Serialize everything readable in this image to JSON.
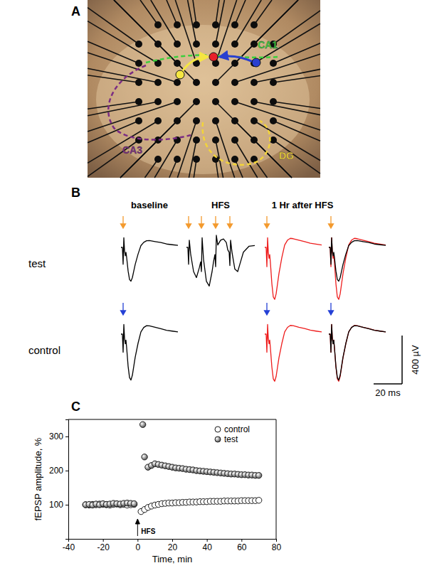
{
  "figure": {
    "panel_labels": [
      "A",
      "B",
      "C"
    ]
  },
  "panel_a": {
    "regions": [
      {
        "label": "CA1",
        "color": "#3ccf3c"
      },
      {
        "label": "CA3",
        "color": "#7b2d83"
      },
      {
        "label": "DG",
        "color": "#f2d43a"
      }
    ]
  },
  "panel_b": {
    "column_labels": [
      "baseline",
      "HFS",
      "1 Hr after HFS"
    ],
    "scale_bar": {
      "v": 400,
      "v_label": "400 µV",
      "t": 20,
      "t_label": "20 ms"
    },
    "rows": [
      {
        "label": "test",
        "arrow_color": "#f39a2e",
        "cells": [
          {
            "stimuli": [
              1.5
            ],
            "traces": [
              {
                "color": "#000000",
                "t": [
                  0,
                  1,
                  1.5,
                  2,
                  2.5,
                  3,
                  3.5,
                  4,
                  5,
                  6,
                  7,
                  8,
                  9,
                  10,
                  12,
                  14,
                  16,
                  18,
                  20,
                  24,
                  28,
                  32,
                  36,
                  40
                ],
                "v": [
                  0,
                  0,
                  -140,
                  80,
                  -30,
                  -70,
                  -40,
                  -85,
                  -195,
                  -265,
                  -280,
                  -250,
                  -195,
                  -140,
                  -55,
                  15,
                  42,
                  55,
                  56,
                  48,
                  40,
                  28,
                  22,
                  17
                ]
              }
            ]
          },
          {
            "stimuli": [
              1.5,
              10.5,
              20.5,
              30.5
            ],
            "traces": [
              {
                "color": "#000000",
                "t": [
                  0,
                  1,
                  1.5,
                  2,
                  3,
                  5,
                  7,
                  9,
                  10,
                  10.5,
                  11,
                  12,
                  14,
                  16,
                  18,
                  19,
                  20,
                  20.5,
                  21,
                  22,
                  24,
                  26,
                  28,
                  29,
                  30,
                  30.5,
                  31,
                  32,
                  34,
                  36,
                  38,
                  40,
                  44,
                  48
                ],
                "v": [
                  0,
                  0,
                  -140,
                  60,
                  -60,
                  -200,
                  -250,
                  -170,
                  -120,
                  -200,
                  80,
                  -100,
                  -280,
                  -320,
                  -200,
                  -120,
                  -60,
                  -160,
                  100,
                  20,
                  60,
                  70,
                  40,
                  -20,
                  -40,
                  -150,
                  60,
                  -40,
                  -180,
                  -200,
                  -120,
                  -40,
                  10,
                  15
                ]
              }
            ]
          },
          {
            "stimuli": [
              1.5
            ],
            "traces": [
              {
                "color": "#ee1c1c",
                "t": [
                  0,
                  1,
                  1.5,
                  2,
                  2.5,
                  3,
                  3.5,
                  4,
                  5,
                  6,
                  7,
                  8,
                  9,
                  10,
                  12,
                  14,
                  16,
                  18,
                  20,
                  24,
                  28,
                  32,
                  36,
                  40
                ],
                "v": [
                  0,
                  0,
                  -160,
                  80,
                  -40,
                  -90,
                  -60,
                  -130,
                  -300,
                  -410,
                  -430,
                  -385,
                  -300,
                  -215,
                  -85,
                  20,
                  60,
                  75,
                  72,
                  60,
                  48,
                  35,
                  27,
                  20
                ]
              }
            ]
          },
          {
            "stimuli": [
              1.5
            ],
            "traces": [
              {
                "color": "#ee1c1c",
                "t": [
                  0,
                  1,
                  1.5,
                  2,
                  2.5,
                  3,
                  3.5,
                  4,
                  5,
                  6,
                  7,
                  8,
                  9,
                  10,
                  12,
                  14,
                  16,
                  18,
                  20,
                  24,
                  28,
                  32,
                  36,
                  40
                ],
                "v": [
                  0,
                  0,
                  -160,
                  80,
                  -40,
                  -90,
                  -60,
                  -130,
                  -300,
                  -410,
                  -430,
                  -385,
                  -300,
                  -215,
                  -85,
                  20,
                  60,
                  75,
                  72,
                  60,
                  48,
                  35,
                  27,
                  20
                ]
              },
              {
                "color": "#000000",
                "t": [
                  0,
                  1,
                  1.5,
                  2,
                  2.5,
                  3,
                  3.5,
                  4,
                  5,
                  6,
                  7,
                  8,
                  9,
                  10,
                  12,
                  14,
                  16,
                  18,
                  20,
                  24,
                  28,
                  32,
                  36,
                  40
                ],
                "v": [
                  0,
                  0,
                  -140,
                  80,
                  -30,
                  -70,
                  -40,
                  -85,
                  -195,
                  -265,
                  -280,
                  -250,
                  -195,
                  -140,
                  -55,
                  15,
                  42,
                  55,
                  56,
                  48,
                  40,
                  28,
                  22,
                  17
                ]
              }
            ]
          }
        ]
      },
      {
        "label": "control",
        "arrow_color": "#2440d6",
        "cells": [
          {
            "stimuli": [
              1.5
            ],
            "traces": [
              {
                "color": "#000000",
                "t": [
                  0,
                  1,
                  1.5,
                  2,
                  2.5,
                  3,
                  3.5,
                  4,
                  5,
                  6,
                  7,
                  8,
                  9,
                  10,
                  12,
                  14,
                  16,
                  18,
                  20,
                  24,
                  28,
                  32,
                  36,
                  40
                ],
                "v": [
                  0,
                  0,
                  -150,
                  80,
                  -35,
                  -80,
                  -50,
                  -115,
                  -265,
                  -360,
                  -380,
                  -340,
                  -265,
                  -190,
                  -75,
                  18,
                  55,
                  70,
                  68,
                  56,
                  45,
                  32,
                  25,
                  18
                ]
              }
            ]
          },
          null,
          {
            "stimuli": [
              1.5
            ],
            "traces": [
              {
                "color": "#ee1c1c",
                "t": [
                  0,
                  1,
                  1.5,
                  2,
                  2.5,
                  3,
                  3.5,
                  4,
                  5,
                  6,
                  7,
                  8,
                  9,
                  10,
                  12,
                  14,
                  16,
                  18,
                  20,
                  24,
                  28,
                  32,
                  36,
                  40
                ],
                "v": [
                  0,
                  0,
                  -150,
                  80,
                  -35,
                  -80,
                  -50,
                  -118,
                  -272,
                  -370,
                  -390,
                  -350,
                  -272,
                  -195,
                  -78,
                  18,
                  56,
                  72,
                  70,
                  57,
                  46,
                  33,
                  25,
                  18
                ]
              }
            ]
          },
          {
            "stimuli": [
              1.5
            ],
            "traces": [
              {
                "color": "#ee1c1c",
                "t": [
                  0,
                  1,
                  1.5,
                  2,
                  2.5,
                  3,
                  3.5,
                  4,
                  5,
                  6,
                  7,
                  8,
                  9,
                  10,
                  12,
                  14,
                  16,
                  18,
                  20,
                  24,
                  28,
                  32,
                  36,
                  40
                ],
                "v": [
                  0,
                  0,
                  -150,
                  80,
                  -35,
                  -80,
                  -50,
                  -118,
                  -272,
                  -370,
                  -390,
                  -350,
                  -272,
                  -195,
                  -78,
                  18,
                  56,
                  72,
                  70,
                  57,
                  46,
                  33,
                  25,
                  18
                ]
              },
              {
                "color": "#000000",
                "t": [
                  0,
                  1,
                  1.5,
                  2,
                  2.5,
                  3,
                  3.5,
                  4,
                  5,
                  6,
                  7,
                  8,
                  9,
                  10,
                  12,
                  14,
                  16,
                  18,
                  20,
                  24,
                  28,
                  32,
                  36,
                  40
                ],
                "v": [
                  0,
                  0,
                  -150,
                  80,
                  -35,
                  -80,
                  -50,
                  -115,
                  -265,
                  -360,
                  -380,
                  -340,
                  -265,
                  -190,
                  -75,
                  18,
                  55,
                  70,
                  68,
                  56,
                  45,
                  32,
                  25,
                  18
                ]
              }
            ]
          }
        ]
      }
    ]
  },
  "chart_data": {
    "type": "scatter",
    "xlabel": "Time, min",
    "ylabel": "fEPSP amplitude, %",
    "xlim": [
      -40,
      80
    ],
    "xticks": [
      -40,
      -20,
      0,
      20,
      40,
      60,
      80
    ],
    "ylim": [
      0,
      350
    ],
    "yticks": [
      100,
      200,
      300
    ],
    "grid": false,
    "legend": "upper right",
    "annotations": [
      {
        "text": "HFS",
        "x": 0
      }
    ],
    "series": [
      {
        "name": "control",
        "color": "#000000",
        "marker": "circle-open",
        "x": [
          -30,
          -28,
          -26,
          -24,
          -22,
          -20,
          -18,
          -16,
          -14,
          -12,
          -10,
          -8,
          -6,
          -4,
          -2,
          2,
          4,
          6,
          8,
          10,
          12,
          14,
          16,
          18,
          20,
          22,
          24,
          26,
          28,
          30,
          32,
          34,
          36,
          38,
          40,
          42,
          44,
          46,
          48,
          50,
          52,
          54,
          56,
          58,
          60,
          62,
          64,
          66,
          68,
          70
        ],
        "values": [
          100,
          99,
          101,
          100,
          102,
          101,
          100,
          99,
          101,
          102,
          100,
          101,
          99,
          100,
          101,
          80,
          86,
          92,
          96,
          99,
          101,
          103,
          104,
          105,
          105,
          106,
          106,
          107,
          107,
          108,
          108,
          108,
          109,
          109,
          109,
          110,
          110,
          110,
          110,
          111,
          111,
          111,
          111,
          111,
          112,
          112,
          112,
          112,
          112,
          113
        ]
      },
      {
        "name": "test",
        "color": "#5a5a5a",
        "marker": "sphere",
        "x": [
          -30,
          -28,
          -26,
          -24,
          -22,
          -20,
          -18,
          -16,
          -14,
          -12,
          -10,
          -8,
          -6,
          -4,
          -2,
          3,
          4,
          6,
          8,
          10,
          12,
          14,
          16,
          18,
          20,
          22,
          24,
          26,
          28,
          30,
          32,
          34,
          36,
          38,
          40,
          42,
          44,
          46,
          48,
          50,
          52,
          54,
          56,
          58,
          60,
          62,
          64,
          66,
          68,
          70
        ],
        "values": [
          100,
          101,
          99,
          102,
          100,
          103,
          101,
          102,
          104,
          103,
          102,
          104,
          105,
          104,
          103,
          335,
          240,
          210,
          215,
          220,
          218,
          216,
          214,
          212,
          210,
          208,
          207,
          206,
          204,
          203,
          202,
          200,
          199,
          198,
          197,
          196,
          195,
          194,
          193,
          192,
          191,
          190,
          190,
          189,
          188,
          188,
          187,
          187,
          186,
          186
        ]
      }
    ]
  }
}
